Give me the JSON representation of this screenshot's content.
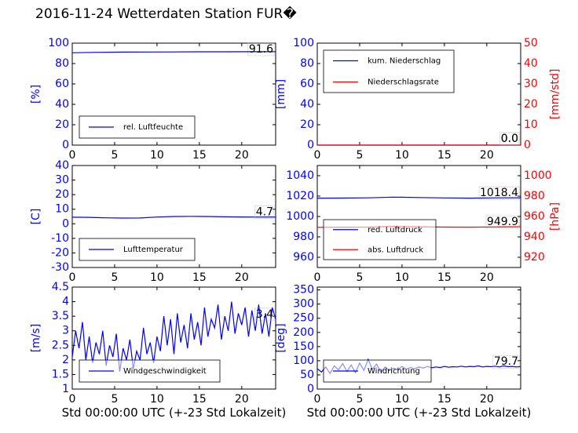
{
  "page": {
    "title": "2016-11-24 Wetterdaten Station FUR�"
  },
  "chart_data": [
    {
      "id": "humidity",
      "type": "line",
      "x_ticks": [
        0,
        5,
        10,
        15,
        20
      ],
      "xlim": [
        0,
        24
      ],
      "ylim": [
        0,
        100
      ],
      "y_ticks": [
        0,
        20,
        40,
        60,
        80,
        100
      ],
      "ylabel": "[%]",
      "xlabel": "",
      "legend_position": "lower-left",
      "last_value_label": "91.6",
      "series": [
        {
          "name": "rel. Luftfeuchte",
          "color": "#0000ff",
          "x": [
            0,
            3,
            6,
            9,
            12,
            15,
            18,
            21,
            24
          ],
          "values": [
            90.5,
            91.0,
            91.2,
            91.3,
            91.4,
            91.5,
            91.5,
            91.6,
            91.6
          ]
        }
      ]
    },
    {
      "id": "precipitation",
      "type": "line",
      "x_ticks": [
        0,
        5,
        10,
        15,
        20
      ],
      "xlim": [
        0,
        24
      ],
      "ylim": [
        0,
        100
      ],
      "y_ticks": [
        0,
        20,
        40,
        60,
        80,
        100
      ],
      "ylabel": "[mm]",
      "y2lim": [
        0,
        50
      ],
      "y2_ticks": [
        0,
        10,
        20,
        30,
        40,
        50
      ],
      "y2label": "[mm/std]",
      "y2_color": "#ff0000",
      "legend_position": "upper-left",
      "last_value_label": "0.0",
      "last_value_label2": "0.0",
      "series": [
        {
          "name": "kum. Niederschlag",
          "color": "#0000ff",
          "axis": "left",
          "x": [
            0,
            24
          ],
          "values": [
            0,
            0
          ]
        },
        {
          "name": "Niederschlagsrate",
          "color": "#ff0000",
          "axis": "right",
          "x": [
            0,
            24
          ],
          "values": [
            0,
            0
          ]
        }
      ]
    },
    {
      "id": "temperature",
      "type": "line",
      "x_ticks": [
        0,
        5,
        10,
        15,
        20
      ],
      "xlim": [
        0,
        24
      ],
      "ylim": [
        -30,
        40
      ],
      "y_ticks": [
        -30,
        -20,
        -10,
        0,
        10,
        20,
        30,
        40
      ],
      "ylabel": "[C]",
      "legend_position": "lower-left",
      "last_value_label": "4.7",
      "series": [
        {
          "name": "Lufttemperatur",
          "color": "#0000ff",
          "x": [
            0,
            2,
            4,
            6,
            8,
            10,
            12,
            14,
            16,
            18,
            20,
            22,
            24
          ],
          "values": [
            4.5,
            4.4,
            4.1,
            3.9,
            4.0,
            4.6,
            5.0,
            5.1,
            5.0,
            4.8,
            4.7,
            4.6,
            4.7
          ]
        }
      ]
    },
    {
      "id": "pressure",
      "type": "line",
      "x_ticks": [
        0,
        5,
        10,
        15,
        20
      ],
      "xlim": [
        0,
        24
      ],
      "ylim": [
        950,
        1050
      ],
      "y_ticks": [
        960,
        980,
        1000,
        1020,
        1040
      ],
      "ylabel": "",
      "y2lim": [
        910,
        1010
      ],
      "y2_ticks": [
        920,
        940,
        960,
        980,
        1000
      ],
      "y2label": "[hPa]",
      "y2_color": "#ff0000",
      "legend_position": "lower-left",
      "last_value_label": "1018.4",
      "last_value_label2": "949.9",
      "series": [
        {
          "name": "red. Luftdruck",
          "color": "#0000ff",
          "axis": "left",
          "x": [
            0,
            3,
            6,
            9,
            12,
            15,
            18,
            21,
            24
          ],
          "values": [
            1018.0,
            1018.1,
            1018.3,
            1019.0,
            1018.6,
            1018.2,
            1018.0,
            1018.3,
            1018.4
          ]
        },
        {
          "name": "abs. Luftdruck",
          "color": "#ff0000",
          "axis": "right",
          "x": [
            0,
            3,
            6,
            9,
            12,
            15,
            18,
            21,
            24
          ],
          "values": [
            949.4,
            949.5,
            949.6,
            950.3,
            949.9,
            949.6,
            949.5,
            949.8,
            949.9
          ]
        }
      ]
    },
    {
      "id": "wind_speed",
      "type": "line",
      "x_ticks": [
        0,
        5,
        10,
        15,
        20
      ],
      "xlim": [
        0,
        24
      ],
      "ylim": [
        1.0,
        4.5
      ],
      "y_ticks": [
        1.0,
        1.5,
        2.0,
        2.5,
        3.0,
        3.5,
        4.0,
        4.5
      ],
      "ylabel": "[m/s]",
      "xlabel": "Std 00:00:00 UTC (+-23 Std Lokalzeit)",
      "legend_position": "lower-left",
      "last_value_label": "3.4",
      "series": [
        {
          "name": "Windgeschwindigkeit",
          "color": "#0000ff",
          "x": [
            0,
            0.4,
            0.8,
            1.2,
            1.6,
            2,
            2.4,
            2.8,
            3.2,
            3.6,
            4,
            4.4,
            4.8,
            5.2,
            5.6,
            6,
            6.4,
            6.8,
            7.2,
            7.6,
            8,
            8.4,
            8.8,
            9.2,
            9.6,
            10,
            10.4,
            10.8,
            11.2,
            11.6,
            12,
            12.4,
            12.8,
            13.2,
            13.6,
            14,
            14.4,
            14.8,
            15.2,
            15.6,
            16,
            16.4,
            16.8,
            17.2,
            17.6,
            18,
            18.4,
            18.8,
            19.2,
            19.6,
            20,
            20.4,
            20.8,
            21.2,
            21.6,
            22,
            22.4,
            22.8,
            23.2,
            23.6,
            24
          ],
          "values": [
            2.1,
            3.0,
            2.4,
            3.3,
            2.0,
            2.8,
            1.9,
            2.6,
            2.2,
            3.0,
            1.8,
            2.5,
            2.1,
            2.9,
            1.6,
            2.4,
            2.0,
            2.7,
            1.7,
            2.3,
            2.0,
            3.1,
            2.2,
            2.6,
            1.9,
            2.8,
            2.3,
            3.5,
            2.5,
            3.4,
            2.2,
            3.6,
            2.6,
            3.2,
            2.4,
            3.6,
            2.7,
            3.3,
            2.5,
            3.8,
            2.8,
            3.4,
            3.1,
            3.9,
            2.7,
            3.5,
            3.0,
            4.0,
            2.9,
            3.6,
            3.2,
            3.8,
            2.8,
            3.7,
            3.0,
            3.9,
            2.9,
            3.6,
            2.8,
            3.8,
            3.4
          ]
        }
      ]
    },
    {
      "id": "wind_direction",
      "type": "line",
      "x_ticks": [
        0,
        5,
        10,
        15,
        20
      ],
      "xlim": [
        0,
        24
      ],
      "ylim": [
        0,
        360
      ],
      "y_ticks": [
        0,
        50,
        100,
        150,
        200,
        250,
        300,
        350
      ],
      "ylabel": "[deg]",
      "xlabel": "Std 00:00:00 UTC (+-23 Std Lokalzeit)",
      "legend_position": "lower-left",
      "last_value_label": "79.7",
      "series": [
        {
          "name": "Windrichtung",
          "color": "#0000ff",
          "x": [
            0,
            0.5,
            1,
            1.5,
            2,
            2.5,
            3,
            3.5,
            4,
            4.5,
            5,
            5.5,
            6,
            6.5,
            7,
            7.5,
            8,
            8.5,
            9,
            9.5,
            10,
            10.5,
            11,
            11.5,
            12,
            12.5,
            13,
            13.5,
            14,
            14.5,
            15,
            15.5,
            16,
            16.5,
            17,
            17.5,
            18,
            18.5,
            19,
            19.5,
            20,
            20.5,
            21,
            21.5,
            22,
            22.5,
            23,
            23.5,
            24
          ],
          "values": [
            72,
            60,
            78,
            55,
            82,
            68,
            90,
            62,
            85,
            58,
            92,
            66,
            105,
            70,
            88,
            60,
            78,
            65,
            74,
            68,
            80,
            70,
            76,
            72,
            78,
            74,
            80,
            75,
            78,
            76,
            80,
            77,
            79,
            78,
            81,
            78,
            80,
            79,
            82,
            78,
            80,
            79,
            81,
            78,
            82,
            79,
            80,
            78,
            79.7
          ]
        }
      ]
    }
  ]
}
